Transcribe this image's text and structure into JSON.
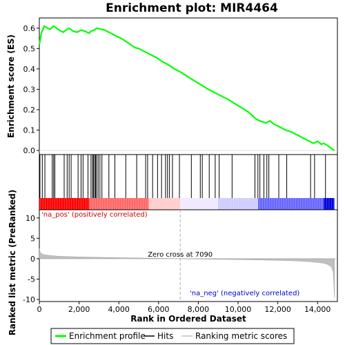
{
  "chart_data": {
    "type": "line",
    "title": "Enrichment plot: MIR4464",
    "es_panel": {
      "ylabel": "Enrichment score (ES)",
      "ylim": [
        -0.02,
        0.65
      ],
      "yticks": [
        0.0,
        0.1,
        0.2,
        0.3,
        0.4,
        0.5,
        0.6
      ],
      "ytick_labels": [
        "0.0",
        "0.1",
        "0.2",
        "0.3",
        "0.4",
        "0.5",
        "0.6"
      ],
      "series_color": "#00ff00",
      "x": [
        0,
        100,
        250,
        400,
        550,
        700,
        800,
        1000,
        1200,
        1350,
        1500,
        1700,
        1900,
        2100,
        2300,
        2500,
        2600,
        2750,
        2900,
        3100,
        3300,
        3600,
        3900,
        4200,
        4500,
        4800,
        5000,
        5300,
        5600,
        5900,
        6200,
        6500,
        6800,
        7100,
        7500,
        8000,
        8500,
        9000,
        9500,
        10000,
        10500,
        10900,
        11100,
        11250,
        11400,
        11600,
        11800,
        12000,
        12200,
        12400,
        12700,
        13000,
        13300,
        13600,
        13800,
        14000,
        14200,
        14300,
        14500,
        14700,
        14850
      ],
      "y": [
        0.52,
        0.575,
        0.61,
        0.6,
        0.595,
        0.61,
        0.605,
        0.59,
        0.58,
        0.59,
        0.6,
        0.585,
        0.58,
        0.59,
        0.585,
        0.575,
        0.585,
        0.59,
        0.6,
        0.595,
        0.59,
        0.575,
        0.56,
        0.545,
        0.525,
        0.505,
        0.5,
        0.485,
        0.47,
        0.455,
        0.435,
        0.42,
        0.4,
        0.385,
        0.36,
        0.33,
        0.3,
        0.275,
        0.25,
        0.22,
        0.19,
        0.155,
        0.145,
        0.14,
        0.135,
        0.145,
        0.13,
        0.12,
        0.11,
        0.1,
        0.09,
        0.075,
        0.06,
        0.045,
        0.035,
        0.045,
        0.03,
        0.035,
        0.025,
        0.01,
        0.0
      ]
    },
    "hits": {
      "positions": [
        30,
        150,
        280,
        650,
        720,
        780,
        1250,
        1400,
        1500,
        1600,
        1950,
        2100,
        2200,
        2450,
        2600,
        2680,
        2720,
        2780,
        2830,
        2880,
        2960,
        3050,
        3150,
        3500,
        3800,
        4350,
        4900,
        5350,
        5450,
        5700,
        5950,
        6150,
        6350,
        6450,
        6550,
        6700,
        7050,
        7650,
        8100,
        8200,
        8550,
        8850,
        9050,
        9700,
        10850,
        11000,
        11100,
        11300,
        11450,
        11550,
        12050,
        12450,
        13650,
        13850,
        14400
      ]
    },
    "rank_bar": {
      "colors": [
        "#ff0000",
        "#ff6666",
        "#ffcccc",
        "#f0e8ff",
        "#ccccff",
        "#6666ff",
        "#0000dd"
      ],
      "stops": [
        0,
        2500,
        5500,
        7090,
        9000,
        11000,
        14300,
        14850
      ]
    },
    "metric_panel": {
      "ylabel": "Ranked list metric (PreRanked)",
      "ylim": [
        -10.5,
        12
      ],
      "yticks": [
        10,
        5,
        0,
        -5,
        -10
      ],
      "ytick_labels": [
        "10",
        "5",
        "0",
        "-5",
        "-10"
      ],
      "x": [
        0,
        50,
        200,
        500,
        1000,
        2000,
        3000,
        4000,
        5000,
        6000,
        7090,
        8000,
        9000,
        10000,
        11000,
        12000,
        13000,
        13500,
        14000,
        14300,
        14500,
        14700,
        14800,
        14850
      ],
      "y": [
        2.5,
        1.5,
        1.0,
        0.8,
        0.6,
        0.45,
        0.35,
        0.25,
        0.18,
        0.1,
        0.0,
        -0.08,
        -0.15,
        -0.22,
        -0.3,
        -0.4,
        -0.55,
        -0.7,
        -0.9,
        -1.1,
        -1.4,
        -2.0,
        -3.5,
        -9.5
      ]
    },
    "xlabel": "Rank in Ordered Dataset",
    "xlim": [
      0,
      15000
    ],
    "xticks": [
      0,
      2000,
      4000,
      6000,
      8000,
      10000,
      12000,
      14000
    ],
    "xtick_labels": [
      "0",
      "2,000",
      "4,000",
      "6,000",
      "8,000",
      "10,000",
      "12,000",
      "14,000"
    ],
    "zero_cross": 7090,
    "annotations": {
      "positive": "'na_pos' (positively correlated)",
      "negative": "'na_neg' (negatively correlated)",
      "zero_cross": "Zero cross at 7090"
    },
    "legend": {
      "placement": "bottom",
      "entries": [
        {
          "label": "Enrichment profile",
          "color": "#00ff00"
        },
        {
          "label": "Hits",
          "color": "#000000"
        },
        {
          "label": "Ranking metric scores",
          "color": "#c0c0c0"
        }
      ]
    }
  }
}
